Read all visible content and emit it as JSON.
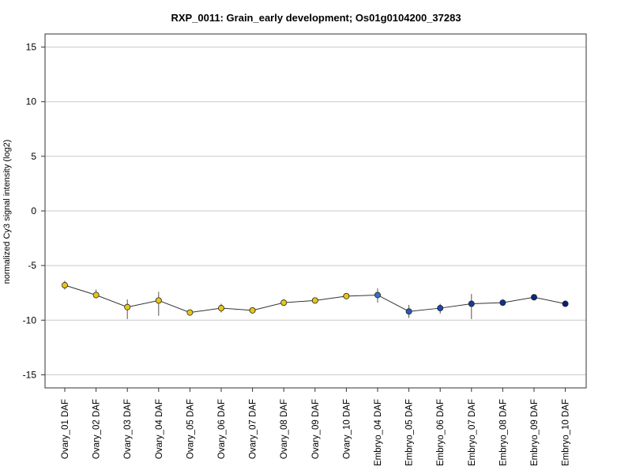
{
  "chart_data": {
    "type": "line",
    "title": "RXP_0011: Grain_early development; Os01g0104200_37283",
    "xlabel": "",
    "ylabel": "normalized Cy3 signal intensity (log2)",
    "ylim": [
      -16.2,
      16.2
    ],
    "yticks": [
      15,
      10,
      5,
      0,
      -5,
      -10,
      -15
    ],
    "ytick_labels": [
      "15",
      "10",
      "5",
      "0",
      "-5",
      "-10",
      "-15"
    ],
    "grid": "horizontal",
    "categories": [
      "Ovary_01 DAF",
      "Ovary_02 DAF",
      "Ovary_03 DAF",
      "Ovary_04 DAF",
      "Ovary_05 DAF",
      "Ovary_06 DAF",
      "Ovary_07 DAF",
      "Ovary_08 DAF",
      "Ovary_09 DAF",
      "Ovary_10 DAF",
      "Embryo_04 DAF",
      "Embryo_05 DAF",
      "Embryo_06 DAF",
      "Embryo_07 DAF",
      "Embryo_08 DAF",
      "Embryo_09 DAF",
      "Embryo_10 DAF"
    ],
    "series": [
      {
        "values": [
          -6.8,
          -7.7,
          -8.8,
          -8.2,
          -9.3,
          -8.9,
          -9.1,
          -8.4,
          -8.2,
          -7.8,
          -7.7,
          -9.2,
          -8.9,
          -8.5,
          -8.4,
          -7.9,
          -8.5
        ],
        "err_low": [
          -7.2,
          -8.0,
          -9.9,
          -9.6,
          -9.5,
          -9.3,
          -9.3,
          -8.5,
          -8.3,
          -7.9,
          -8.4,
          -9.8,
          -9.4,
          -9.9,
          -8.5,
          -8.0,
          -8.6
        ],
        "err_high": [
          -6.4,
          -7.2,
          -8.1,
          -7.4,
          -9.1,
          -8.5,
          -8.9,
          -8.3,
          -8.1,
          -7.6,
          -7.1,
          -8.6,
          -8.5,
          -7.6,
          -8.3,
          -7.8,
          -8.4
        ],
        "colors": [
          "#e8c51a",
          "#e8c51a",
          "#e8c51a",
          "#e8c51a",
          "#e8c51a",
          "#e8c51a",
          "#e8c51a",
          "#e8c51a",
          "#e8c51a",
          "#e8c51a",
          "#3a6fc4",
          "#2a58b8",
          "#1f47aa",
          "#17399c",
          "#10308f",
          "#0a2783",
          "#062077"
        ]
      }
    ],
    "line_color": "#333333",
    "grid_color": "#c8c8c8"
  }
}
